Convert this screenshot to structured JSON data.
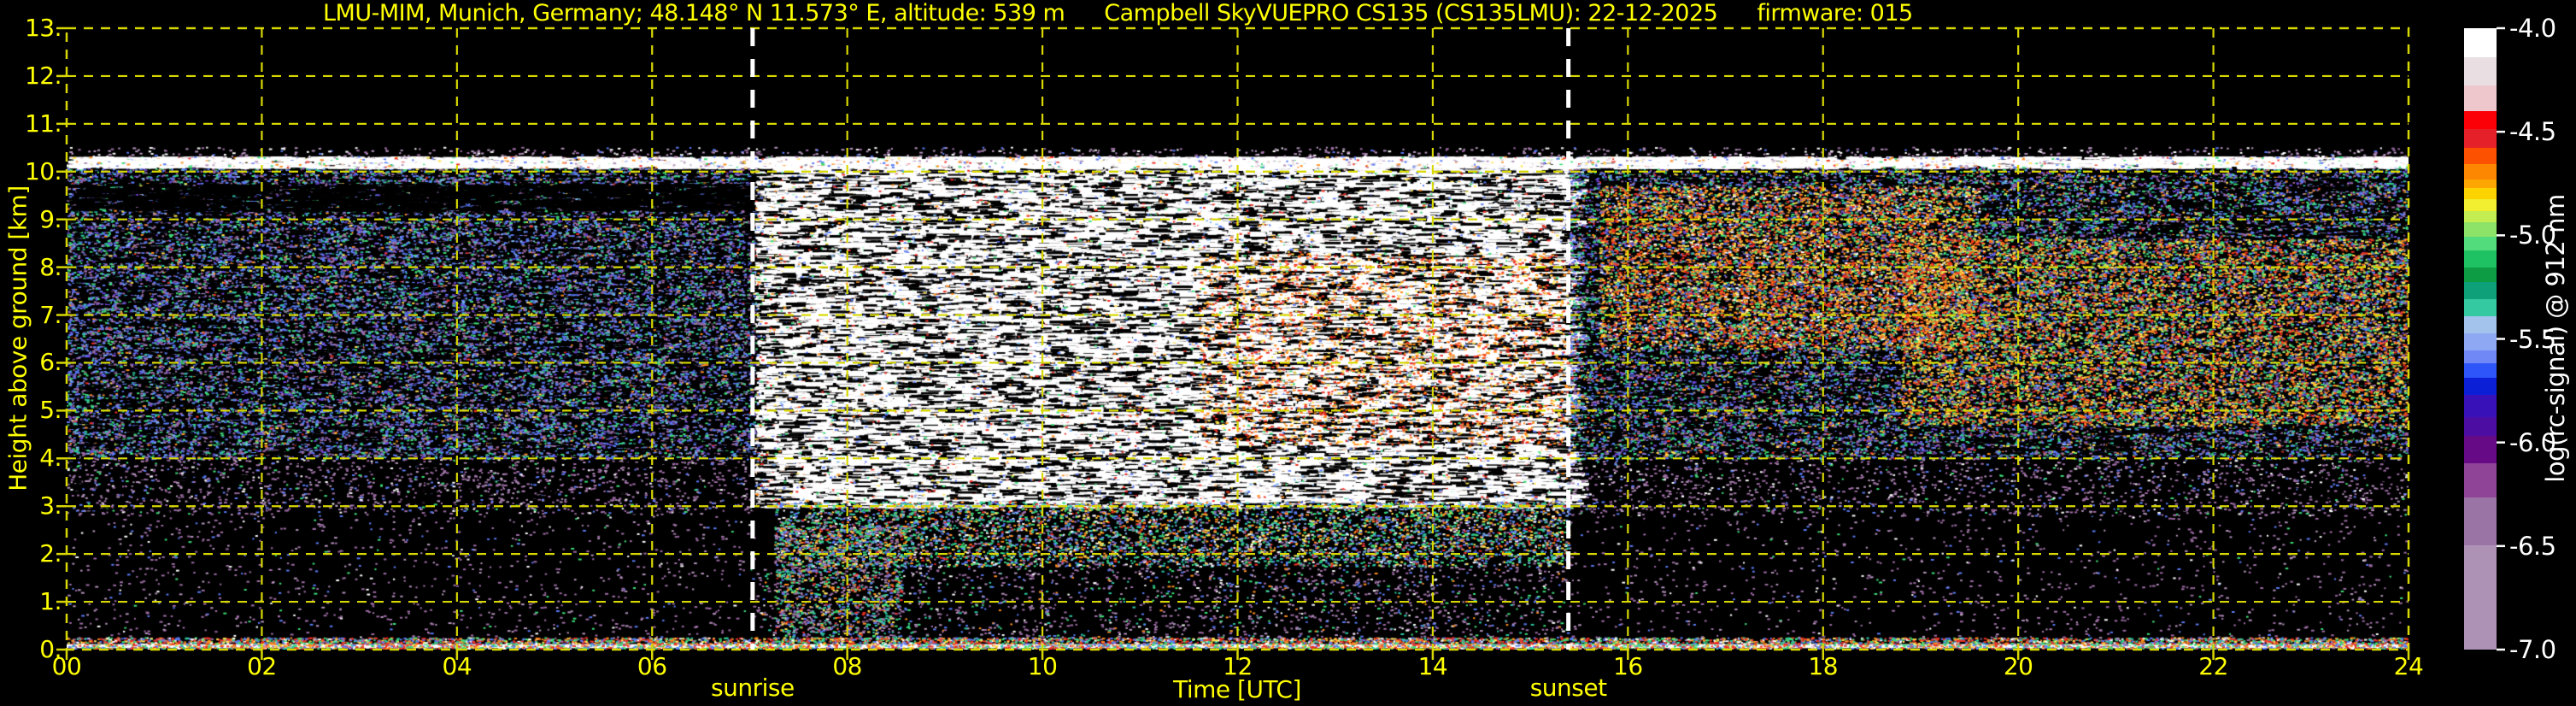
{
  "figure": {
    "background": "#000000",
    "text_color": "#ffff00",
    "grid_color": "#d8d800",
    "sun_line_color": "#ffffff",
    "colorbar_text_color": "#ffffff"
  },
  "chart_data": {
    "type": "heatmap",
    "title": "LMU-MIM, Munich, Germany; 48.148° N 11.573° E, altitude: 539 m    Campbell SkyVUEPRO CS135 (CS135LMU): 22-12-2025    firmware: 015",
    "title_parts": [
      "LMU-MIM, Munich, Germany; 48.148° N 11.573° E, altitude: 539 m",
      "Campbell SkyVUEPRO CS135 (CS135LMU): 22-12-2025",
      "firmware: 015"
    ],
    "xlabel": "Time [UTC]",
    "ylabel": "Height above ground [km]",
    "xlim": [
      0,
      24
    ],
    "ylim": [
      0,
      13
    ],
    "grid": {
      "on": true,
      "style": "dashed",
      "x_step_hours": 2,
      "y_step_km": 1
    },
    "x_tick_values": [
      0,
      2,
      4,
      6,
      8,
      10,
      12,
      14,
      16,
      18,
      20,
      22,
      24
    ],
    "x_tick_labels": [
      "00",
      "02",
      "04",
      "06",
      "08",
      "10",
      "12",
      "14",
      "16",
      "18",
      "20",
      "22",
      "24"
    ],
    "y_tick_values": [
      0,
      1,
      2,
      3,
      4,
      5,
      6,
      7,
      8,
      9,
      10,
      11,
      12,
      13
    ],
    "y_tick_labels": [
      "0.",
      "1.",
      "2.",
      "3.",
      "4.",
      "5.",
      "6.",
      "7.",
      "8.",
      "9.",
      "10.",
      "11.",
      "12.",
      "13."
    ],
    "annotations": [
      {
        "label": "sunrise",
        "time_utc": 7.03
      },
      {
        "label": "sunset",
        "time_utc": 15.39
      }
    ],
    "colorbar": {
      "label": "log(rc-signal) @ 912 nm",
      "range_top": -4.0,
      "range_bottom": -7.0,
      "tick_values": [
        -4.0,
        -4.5,
        -5.0,
        -5.5,
        -6.0,
        -6.5,
        -7.0
      ],
      "tick_labels": [
        "-4.0",
        "-4.5",
        "-5.0",
        "-5.5",
        "-6.0",
        "-6.5",
        "-7.0"
      ],
      "segments": [
        {
          "to": 0.047,
          "color": "#ffffff"
        },
        {
          "to": 0.092,
          "color": "#e9dee1"
        },
        {
          "to": 0.133,
          "color": "#eec7cc"
        },
        {
          "to": 0.163,
          "color": "#fb0007"
        },
        {
          "to": 0.193,
          "color": "#e62028"
        },
        {
          "to": 0.219,
          "color": "#fc5100"
        },
        {
          "to": 0.243,
          "color": "#fd8700"
        },
        {
          "to": 0.257,
          "color": "#fda500"
        },
        {
          "to": 0.275,
          "color": "#fdd400"
        },
        {
          "to": 0.294,
          "color": "#f2ee30"
        },
        {
          "to": 0.312,
          "color": "#c4ed51"
        },
        {
          "to": 0.336,
          "color": "#8de368"
        },
        {
          "to": 0.358,
          "color": "#52dc7c"
        },
        {
          "to": 0.385,
          "color": "#1fc262"
        },
        {
          "to": 0.409,
          "color": "#0d9c43"
        },
        {
          "to": 0.436,
          "color": "#0ea078"
        },
        {
          "to": 0.464,
          "color": "#35c9a2"
        },
        {
          "to": 0.491,
          "color": "#a3c2ec"
        },
        {
          "to": 0.519,
          "color": "#8fa8f4"
        },
        {
          "to": 0.539,
          "color": "#6f88f5"
        },
        {
          "to": 0.563,
          "color": "#2e55fa"
        },
        {
          "to": 0.591,
          "color": "#0b1fd6"
        },
        {
          "to": 0.626,
          "color": "#3812b8"
        },
        {
          "to": 0.656,
          "color": "#4c0da2"
        },
        {
          "to": 0.7,
          "color": "#660a86"
        },
        {
          "to": 0.755,
          "color": "#8f4497"
        },
        {
          "to": 0.832,
          "color": "#9b74a6"
        },
        {
          "to": 1.0,
          "color": "#ad92b6"
        }
      ]
    },
    "bands": [
      {
        "t0": 0,
        "t1": 24,
        "h0": 0.03,
        "h1": 0.115,
        "color": "#ffffff",
        "note": "surface return band"
      }
    ],
    "texture_regions": [
      {
        "name": "night-upper-aerosol-noise",
        "t0": 0,
        "t1": 7.05,
        "h0": 4.0,
        "h1": 10.15,
        "density": 0.6,
        "palette": [
          [
            "#5b7bf5",
            26
          ],
          [
            "#9d6ca5",
            22
          ],
          [
            "#6b46d6",
            8
          ],
          [
            "#3edd78",
            12
          ],
          [
            "#2cc9a4",
            6
          ],
          [
            "#7fb7f0",
            5
          ],
          [
            "#000000",
            16,
            "s"
          ],
          [
            "#ffe34d",
            2
          ],
          [
            "#ff8e1f",
            2
          ],
          [
            "#ee2e24",
            1
          ]
        ]
      },
      {
        "name": "night-9km-dark-lane",
        "t0": 0,
        "t1": 7.05,
        "h0": 9.2,
        "h1": 9.75,
        "density": 0.22,
        "palette": [
          [
            "#000000",
            100,
            "s"
          ]
        ]
      },
      {
        "name": "night-mid",
        "t0": 0,
        "t1": 7.05,
        "h0": 2.85,
        "h1": 4.0,
        "density": 0.14,
        "palette": [
          [
            "#9d6ca5",
            45
          ],
          [
            "#b393bb",
            20
          ],
          [
            "#5b7bf5",
            12
          ],
          [
            "#000000",
            10,
            "s"
          ],
          [
            "#3edd78",
            6
          ],
          [
            "#ffffff",
            7
          ]
        ]
      },
      {
        "name": "night-low-sparse",
        "t0": 0,
        "t1": 7.05,
        "h0": 0.22,
        "h1": 2.85,
        "density": 0.035,
        "palette": [
          [
            "#9d6ca5",
            55
          ],
          [
            "#b393bb",
            25
          ],
          [
            "#5b7bf5",
            10
          ],
          [
            "#3edd78",
            5
          ],
          [
            "#ffffff",
            5
          ]
        ]
      },
      {
        "name": "daylight-background-noise",
        "t0": 7.05,
        "t1": 15.39,
        "h0": 3.0,
        "h1": 10.15,
        "density": 0.8,
        "palette": [
          [
            "#ffffff",
            44,
            "s"
          ],
          [
            "#e7d9dc",
            8
          ],
          [
            "#000000",
            26,
            "s"
          ],
          [
            "#ee2e24",
            5
          ],
          [
            "#5b7bf5",
            6
          ],
          [
            "#3edd78",
            4
          ],
          [
            "#ff8e1f",
            3
          ],
          [
            "#7fb7f0",
            2
          ],
          [
            "#ffe34d",
            2
          ]
        ]
      },
      {
        "name": "midday-warm-patches",
        "t0": 11.6,
        "t1": 15.39,
        "h0": 4.3,
        "h1": 8.3,
        "density": 0.12,
        "palette": [
          [
            "#ff8e1f",
            40
          ],
          [
            "#ee2e24",
            25
          ],
          [
            "#ffe34d",
            20
          ],
          [
            "#ff5316",
            15
          ]
        ]
      },
      {
        "name": "day-low-colorful",
        "t0": 7.25,
        "t1": 15.39,
        "h0": 1.75,
        "h1": 3.1,
        "density": 0.38,
        "palette": [
          [
            "#2cc9a4",
            14
          ],
          [
            "#3edd78",
            16
          ],
          [
            "#5b7bf5",
            14
          ],
          [
            "#9d6ca5",
            14
          ],
          [
            "#ff8e1f",
            11
          ],
          [
            "#ffe34d",
            9
          ],
          [
            "#ee2e24",
            6
          ],
          [
            "#ffffff",
            8
          ],
          [
            "#7fb7f0",
            8
          ]
        ]
      },
      {
        "name": "day-low-sparse",
        "t0": 7.05,
        "t1": 15.39,
        "h0": 0.22,
        "h1": 1.75,
        "density": 0.1,
        "palette": [
          [
            "#9d6ca5",
            40
          ],
          [
            "#b393bb",
            22
          ],
          [
            "#5b7bf5",
            12
          ],
          [
            "#2cc9a4",
            8
          ],
          [
            "#3edd78",
            8
          ],
          [
            "#ff8e1f",
            5
          ],
          [
            "#ffffff",
            5
          ]
        ]
      },
      {
        "name": "morning-low-column",
        "t0": 7.25,
        "t1": 8.55,
        "h0": 0.22,
        "h1": 2.6,
        "density": 0.3,
        "palette": [
          [
            "#9d6ca5",
            20
          ],
          [
            "#5b7bf5",
            15
          ],
          [
            "#2cc9a4",
            15
          ],
          [
            "#3edd78",
            15
          ],
          [
            "#ff8e1f",
            10
          ],
          [
            "#ffe34d",
            8
          ],
          [
            "#ee2e24",
            5
          ],
          [
            "#b393bb",
            12
          ]
        ]
      },
      {
        "name": "evening-upper-aerosol-noise",
        "t0": 15.39,
        "t1": 24,
        "h0": 4.0,
        "h1": 10.15,
        "density": 0.6,
        "palette": [
          [
            "#5b7bf5",
            24
          ],
          [
            "#9d6ca5",
            20
          ],
          [
            "#3edd78",
            14
          ],
          [
            "#2cc9a4",
            7
          ],
          [
            "#6b46d6",
            7
          ],
          [
            "#000000",
            16,
            "s"
          ],
          [
            "#ffe34d",
            4
          ],
          [
            "#ff8e1f",
            5
          ],
          [
            "#ee2e24",
            2
          ],
          [
            "#7fb7f0",
            1
          ]
        ]
      },
      {
        "name": "evening-warm-blob-1",
        "t0": 15.7,
        "t1": 19.6,
        "h0": 6.3,
        "h1": 9.7,
        "density": 0.3,
        "palette": [
          [
            "#ff8e1f",
            30
          ],
          [
            "#ee2e24",
            20
          ],
          [
            "#ffe34d",
            22
          ],
          [
            "#ff5316",
            10
          ],
          [
            "#3edd78",
            10
          ],
          [
            "#ffffff",
            8
          ]
        ]
      },
      {
        "name": "evening-warm-blob-2",
        "t0": 18.8,
        "t1": 24,
        "h0": 4.7,
        "h1": 8.6,
        "density": 0.26,
        "palette": [
          [
            "#ff8e1f",
            28
          ],
          [
            "#ee2e24",
            18
          ],
          [
            "#ffe34d",
            24
          ],
          [
            "#ff5316",
            8
          ],
          [
            "#3edd78",
            14
          ],
          [
            "#8ce96e",
            8
          ]
        ]
      },
      {
        "name": "evening-mid",
        "t0": 15.39,
        "t1": 24,
        "h0": 2.8,
        "h1": 4.0,
        "density": 0.12,
        "palette": [
          [
            "#9d6ca5",
            45
          ],
          [
            "#b393bb",
            20
          ],
          [
            "#5b7bf5",
            12
          ],
          [
            "#000000",
            10,
            "s"
          ],
          [
            "#3edd78",
            6
          ],
          [
            "#ffffff",
            7
          ]
        ]
      },
      {
        "name": "evening-low-sparse",
        "t0": 15.39,
        "t1": 24,
        "h0": 0.22,
        "h1": 2.8,
        "density": 0.03,
        "palette": [
          [
            "#9d6ca5",
            55
          ],
          [
            "#b393bb",
            25
          ],
          [
            "#5b7bf5",
            10
          ],
          [
            "#3edd78",
            5
          ],
          [
            "#ffffff",
            5
          ]
        ]
      },
      {
        "name": "range-limit-speckle-line",
        "t0": 0,
        "t1": 24,
        "h0": 10.1,
        "h1": 10.32,
        "density": 0.85,
        "palette": [
          [
            "#ffffff",
            50,
            "s"
          ],
          [
            "#e7d9dc",
            12
          ],
          [
            "#b393bb",
            10
          ],
          [
            "#5b7bf5",
            8
          ],
          [
            "#3edd78",
            6
          ],
          [
            "#ff8e1f",
            7
          ],
          [
            "#ee2e24",
            4
          ],
          [
            "#ffe34d",
            3
          ]
        ]
      },
      {
        "name": "above-range-sparse",
        "t0": 0,
        "t1": 24,
        "h0": 10.32,
        "h1": 10.52,
        "density": 0.1,
        "palette": [
          [
            "#b393bb",
            50
          ],
          [
            "#ffffff",
            20
          ],
          [
            "#9d6ca5",
            20
          ],
          [
            "#5b7bf5",
            10
          ]
        ]
      },
      {
        "name": "surface-speckle",
        "t0": 0,
        "t1": 24,
        "h0": 0.02,
        "h1": 0.26,
        "density": 0.9,
        "palette": [
          [
            "#ee2e24",
            22
          ],
          [
            "#ff8e1f",
            14
          ],
          [
            "#5b7bf5",
            16
          ],
          [
            "#3edd78",
            16
          ],
          [
            "#2cc9a4",
            8
          ],
          [
            "#ffe34d",
            8
          ],
          [
            "#ffffff",
            10
          ],
          [
            "#9d6ca5",
            6
          ]
        ]
      }
    ]
  }
}
